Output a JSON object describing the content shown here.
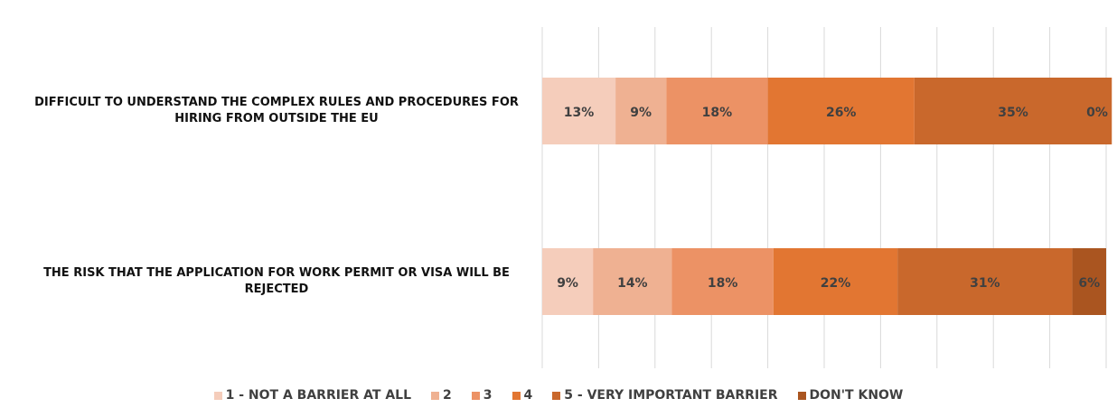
{
  "chart_data": {
    "type": "stacked_barh",
    "categories": [
      "DIFFICULT TO UNDERSTAND THE COMPLEX RULES AND PROCEDURES FOR HIRING FROM OUTSIDE THE EU",
      "THE RISK THAT THE APPLICATION FOR WORK PERMIT OR VISA WILL BE REJECTED"
    ],
    "series": [
      {
        "name": "1 - NOT A BARRIER AT ALL",
        "color": "#f5cdbb",
        "values": [
          13,
          9
        ],
        "value_labels": [
          "13%",
          "9%"
        ]
      },
      {
        "name": "2",
        "color": "#efb192",
        "values": [
          9,
          14
        ],
        "value_labels": [
          "9%",
          "14%"
        ]
      },
      {
        "name": "3",
        "color": "#ec9265",
        "values": [
          18,
          18
        ],
        "value_labels": [
          "18%",
          "18%"
        ]
      },
      {
        "name": "4",
        "color": "#e27632",
        "values": [
          26,
          22
        ],
        "value_labels": [
          "26%",
          "22%"
        ]
      },
      {
        "name": "5 - VERY IMPORTANT BARRIER",
        "color": "#c9682c",
        "values": [
          35,
          31
        ],
        "value_labels": [
          "35%",
          "31%"
        ]
      },
      {
        "name": "DON'T KNOW",
        "color": "#aa5520",
        "values": [
          0,
          6
        ],
        "value_labels": [
          "0%",
          "6%"
        ]
      }
    ],
    "xlim": [
      0,
      100
    ],
    "xticks": [
      0,
      10,
      20,
      30,
      40,
      50,
      60,
      70,
      80,
      90,
      100
    ],
    "grid": true,
    "legend": "bottom"
  }
}
